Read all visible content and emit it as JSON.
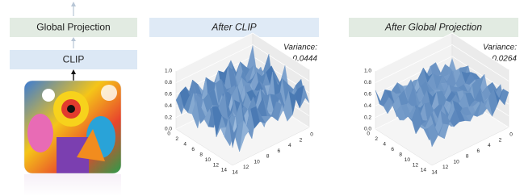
{
  "diagram": {
    "blocks": [
      "Global Projection",
      "CLIP"
    ]
  },
  "panels": [
    {
      "title": "After CLIP",
      "variance_label": "Variance:",
      "variance": "0.0444",
      "zticks": [
        "0.0",
        "0.2",
        "0.4",
        "0.6",
        "0.8",
        "1.0"
      ],
      "left_ticks": [
        "0",
        "2",
        "4",
        "6",
        "8",
        "10",
        "12",
        "14"
      ],
      "right_ticks": [
        "14",
        "12",
        "10",
        "8",
        "6",
        "4",
        "2",
        "0"
      ]
    },
    {
      "title": "After Global Projection",
      "variance_label": "Variance:",
      "variance": "0.0264",
      "zticks": [
        "0.0",
        "0.2",
        "0.4",
        "0.6",
        "0.8",
        "1.0"
      ],
      "left_ticks": [
        "0",
        "2",
        "4",
        "6",
        "8",
        "10",
        "12",
        "14"
      ],
      "right_ticks": [
        "14",
        "12",
        "10",
        "8",
        "6",
        "4",
        "2",
        "0"
      ]
    }
  ]
}
